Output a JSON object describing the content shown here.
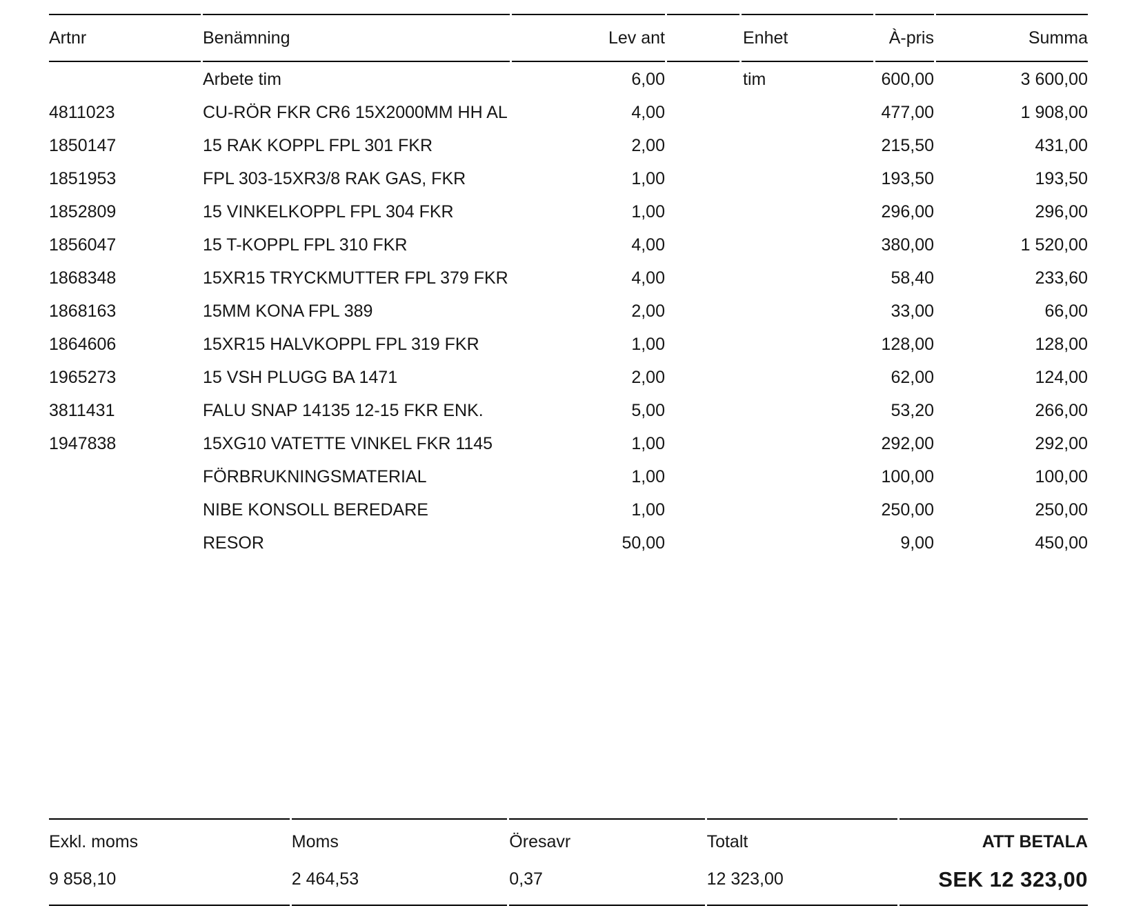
{
  "table": {
    "columns": {
      "artnr": "Artnr",
      "name": "Benämning",
      "qty": "Lev ant",
      "unit": "Enhet",
      "price": "À-pris",
      "sum": "Summa"
    },
    "rows": [
      {
        "artnr": "",
        "name": "Arbete tim",
        "qty": "6,00",
        "unit": "tim",
        "price": "600,00",
        "sum": "3 600,00"
      },
      {
        "artnr": "4811023",
        "name": "CU-RÖR FKR CR6 15X2000MM HH AL",
        "qty": "4,00",
        "unit": "",
        "price": "477,00",
        "sum": "1 908,00"
      },
      {
        "artnr": "1850147",
        "name": "15 RAK KOPPL FPL 301 FKR",
        "qty": "2,00",
        "unit": "",
        "price": "215,50",
        "sum": "431,00"
      },
      {
        "artnr": "1851953",
        "name": "FPL 303-15XR3/8 RAK GAS, FKR",
        "qty": "1,00",
        "unit": "",
        "price": "193,50",
        "sum": "193,50"
      },
      {
        "artnr": "1852809",
        "name": "15 VINKELKOPPL FPL 304 FKR",
        "qty": "1,00",
        "unit": "",
        "price": "296,00",
        "sum": "296,00"
      },
      {
        "artnr": "1856047",
        "name": "15 T-KOPPL FPL 310 FKR",
        "qty": "4,00",
        "unit": "",
        "price": "380,00",
        "sum": "1 520,00"
      },
      {
        "artnr": "1868348",
        "name": "15XR15 TRYCKMUTTER FPL 379 FKR",
        "qty": "4,00",
        "unit": "",
        "price": "58,40",
        "sum": "233,60"
      },
      {
        "artnr": "1868163",
        "name": "15MM KONA FPL 389",
        "qty": "2,00",
        "unit": "",
        "price": "33,00",
        "sum": "66,00"
      },
      {
        "artnr": "1864606",
        "name": "15XR15 HALVKOPPL FPL 319 FKR",
        "qty": "1,00",
        "unit": "",
        "price": "128,00",
        "sum": "128,00"
      },
      {
        "artnr": "1965273",
        "name": "15 VSH PLUGG BA 1471",
        "qty": "2,00",
        "unit": "",
        "price": "62,00",
        "sum": "124,00"
      },
      {
        "artnr": "3811431",
        "name": "FALU SNAP 14135 12-15 FKR ENK.",
        "qty": "5,00",
        "unit": "",
        "price": "53,20",
        "sum": "266,00"
      },
      {
        "artnr": "1947838",
        "name": "15XG10 VATETTE VINKEL FKR 1145",
        "qty": "1,00",
        "unit": "",
        "price": "292,00",
        "sum": "292,00"
      },
      {
        "artnr": "",
        "name": "FÖRBRUKNINGSMATERIAL",
        "qty": "1,00",
        "unit": "",
        "price": "100,00",
        "sum": "100,00"
      },
      {
        "artnr": "",
        "name": "NIBE KONSOLL BEREDARE",
        "qty": "1,00",
        "unit": "",
        "price": "250,00",
        "sum": "250,00"
      },
      {
        "artnr": "",
        "name": "RESOR",
        "qty": "50,00",
        "unit": "",
        "price": "9,00",
        "sum": "450,00"
      }
    ]
  },
  "summary": {
    "excl_moms_label": "Exkl. moms",
    "excl_moms_value": "9 858,10",
    "moms_label": "Moms",
    "moms_value": "2 464,53",
    "oresavr_label": "Öresavr",
    "oresavr_value": "0,37",
    "totalt_label": "Totalt",
    "totalt_value": "12 323,00",
    "att_betala_label": "ATT BETALA",
    "att_betala_value": "SEK 12 323,00"
  }
}
